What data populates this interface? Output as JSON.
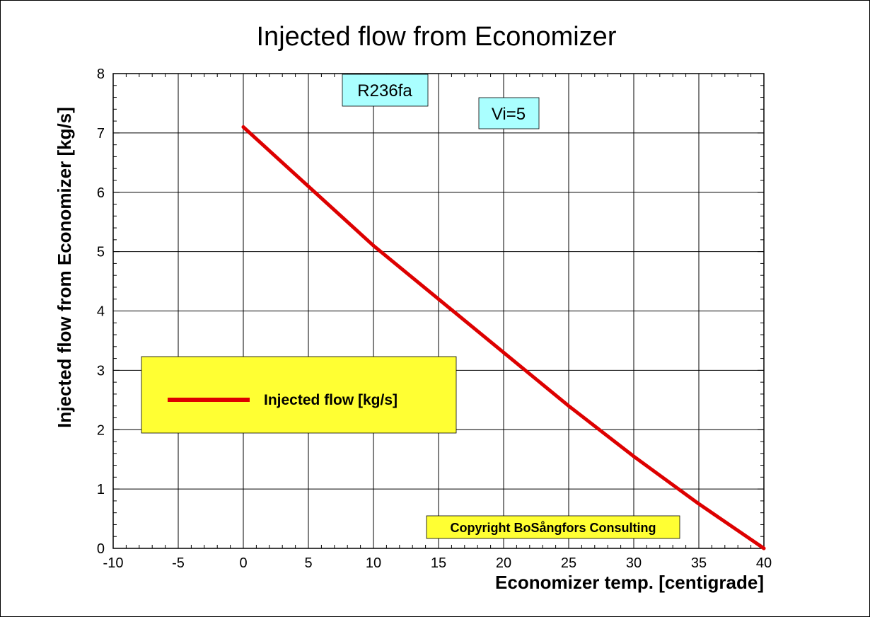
{
  "chart_data": {
    "type": "line",
    "title": "Injected flow from Economizer",
    "xlabel": "Economizer temp. [centigrade]",
    "ylabel": "Injected flow from Economizer [kg/s]",
    "xlim": [
      -10,
      40
    ],
    "ylim": [
      0,
      8
    ],
    "xticks": [
      -10,
      -5,
      0,
      5,
      10,
      15,
      20,
      25,
      30,
      35,
      40
    ],
    "yticks": [
      0,
      1,
      2,
      3,
      4,
      5,
      6,
      7,
      8
    ],
    "grid": true,
    "series": [
      {
        "name": "Injected flow [kg/s]",
        "color": "#dd0000",
        "x": [
          0,
          5,
          10,
          15,
          20,
          25,
          30,
          35,
          40
        ],
        "y": [
          7.1,
          6.1,
          5.1,
          4.2,
          3.3,
          2.4,
          1.55,
          0.75,
          0.0
        ]
      }
    ],
    "legend": {
      "label": "Injected flow [kg/s]",
      "position": "middle-left",
      "background": "#ffff33"
    },
    "annotations": [
      {
        "text": "R236fa",
        "background": "#aaffff"
      },
      {
        "text": "Vi=5",
        "background": "#aaffff"
      },
      {
        "text": "Copyright BoSångfors Consulting",
        "background": "#ffff33"
      }
    ]
  }
}
